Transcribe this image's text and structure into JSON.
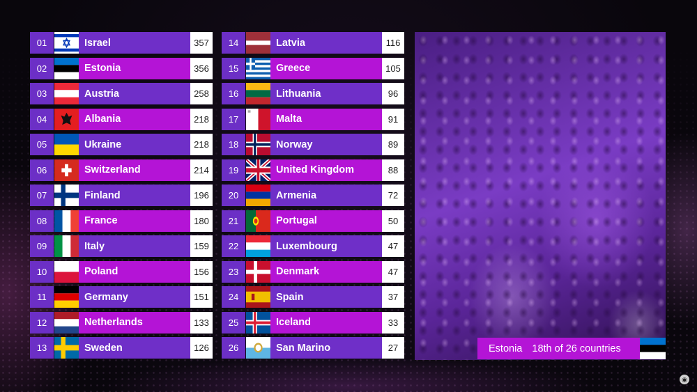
{
  "scoreboard": {
    "left": [
      {
        "pos": "01",
        "country": "Israel",
        "points": "357",
        "flag": "israel-flag-icon"
      },
      {
        "pos": "02",
        "country": "Estonia",
        "points": "356",
        "flag": "estonia-flag-icon"
      },
      {
        "pos": "03",
        "country": "Austria",
        "points": "258",
        "flag": "austria-flag-icon"
      },
      {
        "pos": "04",
        "country": "Albania",
        "points": "218",
        "flag": "albania-flag-icon"
      },
      {
        "pos": "05",
        "country": "Ukraine",
        "points": "218",
        "flag": "ukraine-flag-icon"
      },
      {
        "pos": "06",
        "country": "Switzerland",
        "points": "214",
        "flag": "switzerland-flag-icon"
      },
      {
        "pos": "07",
        "country": "Finland",
        "points": "196",
        "flag": "finland-flag-icon"
      },
      {
        "pos": "08",
        "country": "France",
        "points": "180",
        "flag": "france-flag-icon"
      },
      {
        "pos": "09",
        "country": "Italy",
        "points": "159",
        "flag": "italy-flag-icon"
      },
      {
        "pos": "10",
        "country": "Poland",
        "points": "156",
        "flag": "poland-flag-icon"
      },
      {
        "pos": "11",
        "country": "Germany",
        "points": "151",
        "flag": "germany-flag-icon"
      },
      {
        "pos": "12",
        "country": "Netherlands",
        "points": "133",
        "flag": "netherlands-flag-icon"
      },
      {
        "pos": "13",
        "country": "Sweden",
        "points": "126",
        "flag": "sweden-flag-icon"
      }
    ],
    "right": [
      {
        "pos": "14",
        "country": "Latvia",
        "points": "116",
        "flag": "latvia-flag-icon"
      },
      {
        "pos": "15",
        "country": "Greece",
        "points": "105",
        "flag": "greece-flag-icon"
      },
      {
        "pos": "16",
        "country": "Lithuania",
        "points": "96",
        "flag": "lithuania-flag-icon"
      },
      {
        "pos": "17",
        "country": "Malta",
        "points": "91",
        "flag": "malta-flag-icon"
      },
      {
        "pos": "18",
        "country": "Norway",
        "points": "89",
        "flag": "norway-flag-icon"
      },
      {
        "pos": "19",
        "country": "United Kingdom",
        "points": "88",
        "flag": "united-kingdom-flag-icon"
      },
      {
        "pos": "20",
        "country": "Armenia",
        "points": "72",
        "flag": "armenia-flag-icon"
      },
      {
        "pos": "21",
        "country": "Portugal",
        "points": "50",
        "flag": "portugal-flag-icon"
      },
      {
        "pos": "22",
        "country": "Luxembourg",
        "points": "47",
        "flag": "luxembourg-flag-icon"
      },
      {
        "pos": "23",
        "country": "Denmark",
        "points": "47",
        "flag": "denmark-flag-icon"
      },
      {
        "pos": "24",
        "country": "Spain",
        "points": "37",
        "flag": "spain-flag-icon"
      },
      {
        "pos": "25",
        "country": "Iceland",
        "points": "33",
        "flag": "iceland-flag-icon"
      },
      {
        "pos": "26",
        "country": "San Marino",
        "points": "27",
        "flag": "san-marino-flag-icon"
      }
    ]
  },
  "banner": {
    "country": "Estonia",
    "status": "18th of 26 countries",
    "flag": "estonia-flag-icon"
  },
  "colors": {
    "position_bg": "#6c2fc6",
    "row_purple": "#6f2fc8",
    "row_magenta": "#b414d6",
    "points_bg": "#ffffff"
  }
}
